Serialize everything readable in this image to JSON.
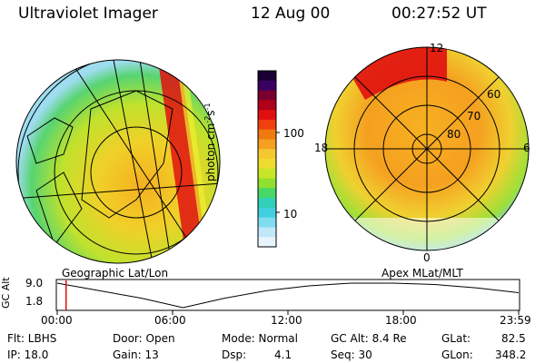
{
  "header": {
    "instrument": "Ultraviolet Imager",
    "date": "12 Aug 00",
    "time": "00:27:52 UT"
  },
  "left_panel": {
    "caption": "Geographic Lat/Lon"
  },
  "right_panel": {
    "caption": "Apex MLat/MLT",
    "mlt_labels": [
      "12",
      "18",
      "6",
      "0"
    ],
    "lat_labels": [
      "60",
      "70",
      "80"
    ]
  },
  "colorbar": {
    "label_main": "photon cm",
    "label_exp1": "-2",
    "label_mid": "s",
    "label_exp2": "-1",
    "ticks": [
      "100",
      "10"
    ],
    "colors": [
      "#1a0033",
      "#3a0060",
      "#7a0030",
      "#b0001a",
      "#e01010",
      "#f04010",
      "#f07a10",
      "#f5a020",
      "#f5c830",
      "#eedc2e",
      "#c8e628",
      "#90e030",
      "#48d868",
      "#30d0b8",
      "#40d0e0",
      "#80dcf0",
      "#c0e8f8",
      "#e8f4fc"
    ]
  },
  "timeline": {
    "ylabel": "GC Alt",
    "ymax": "9.0",
    "ymin": "1.8",
    "ticks": [
      "00:00",
      "06:00",
      "12:00",
      "18:00",
      "23:59"
    ],
    "marker_hour": 0.46,
    "alt_samples": [
      9.0,
      6.8,
      4.6,
      1.8,
      4.6,
      6.8,
      8.2,
      9.0,
      9.0,
      8.6,
      7.6,
      6.2
    ]
  },
  "info": {
    "flt": "Flt: LBHS",
    "ip": "IP: 18.0",
    "door": "Door: Open",
    "gain": "Gain: 13",
    "mode": "Mode: Normal",
    "dsp_label": "Dsp:",
    "dsp_value": "4.1",
    "gc_alt": "GC Alt: 8.4 Re",
    "seq": "Seq: 30",
    "glat_label": "GLat:",
    "glat_value": "82.5",
    "glon_label": "GLon:",
    "glon_value": "348.2"
  }
}
